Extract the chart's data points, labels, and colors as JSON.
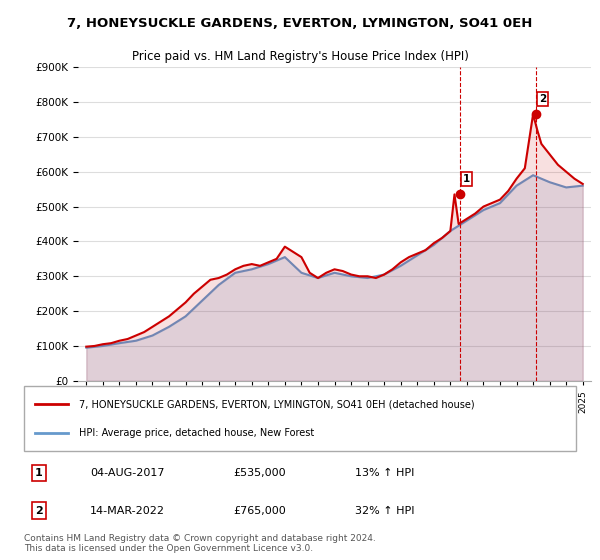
{
  "title": "7, HONEYSUCKLE GARDENS, EVERTON, LYMINGTON, SO41 0EH",
  "subtitle": "Price paid vs. HM Land Registry's House Price Index (HPI)",
  "footer": "Contains HM Land Registry data © Crown copyright and database right 2024.\nThis data is licensed under the Open Government Licence v3.0.",
  "legend_line1": "7, HONEYSUCKLE GARDENS, EVERTON, LYMINGTON, SO41 0EH (detached house)",
  "legend_line2": "HPI: Average price, detached house, New Forest",
  "annotation1_label": "1",
  "annotation1_date": "04-AUG-2017",
  "annotation1_price": "£535,000",
  "annotation1_hpi": "13% ↑ HPI",
  "annotation2_label": "2",
  "annotation2_date": "14-MAR-2022",
  "annotation2_price": "£765,000",
  "annotation2_hpi": "32% ↑ HPI",
  "red_color": "#cc0000",
  "blue_color": "#6699cc",
  "annotation_color": "#cc0000",
  "grid_color": "#dddddd",
  "background_color": "#ffffff",
  "years": [
    1995,
    1996,
    1997,
    1998,
    1999,
    2000,
    2001,
    2002,
    2003,
    2004,
    2005,
    2006,
    2007,
    2008,
    2009,
    2010,
    2011,
    2012,
    2013,
    2014,
    2015,
    2016,
    2017,
    2018,
    2019,
    2020,
    2021,
    2022,
    2023,
    2024,
    2025
  ],
  "hpi_values": [
    95000,
    100000,
    108000,
    115000,
    130000,
    155000,
    185000,
    230000,
    275000,
    310000,
    320000,
    335000,
    355000,
    310000,
    295000,
    310000,
    300000,
    295000,
    305000,
    330000,
    360000,
    390000,
    430000,
    460000,
    490000,
    510000,
    560000,
    590000,
    570000,
    555000,
    560000
  ],
  "price_values_x": [
    1995.0,
    1995.5,
    1996.0,
    1996.5,
    1997.0,
    1997.5,
    1998.0,
    1998.5,
    1999.0,
    1999.5,
    2000.0,
    2000.5,
    2001.0,
    2001.5,
    2002.0,
    2002.5,
    2003.0,
    2003.5,
    2004.0,
    2004.5,
    2005.0,
    2005.5,
    2006.0,
    2006.5,
    2007.0,
    2007.5,
    2008.0,
    2008.5,
    2009.0,
    2009.5,
    2010.0,
    2010.5,
    2011.0,
    2011.5,
    2012.0,
    2012.5,
    2013.0,
    2013.5,
    2014.0,
    2014.5,
    2015.0,
    2015.5,
    2016.0,
    2016.5,
    2017.0,
    2017.25,
    2017.5,
    2018.0,
    2018.5,
    2019.0,
    2019.5,
    2020.0,
    2020.5,
    2021.0,
    2021.5,
    2022.0,
    2022.25,
    2022.5,
    2023.0,
    2023.5,
    2024.0,
    2024.5,
    2025.0
  ],
  "price_values_y": [
    98000,
    100000,
    105000,
    108000,
    115000,
    120000,
    130000,
    140000,
    155000,
    170000,
    185000,
    205000,
    225000,
    250000,
    270000,
    290000,
    295000,
    305000,
    320000,
    330000,
    335000,
    330000,
    340000,
    350000,
    385000,
    370000,
    355000,
    310000,
    295000,
    310000,
    320000,
    315000,
    305000,
    300000,
    300000,
    295000,
    305000,
    320000,
    340000,
    355000,
    365000,
    375000,
    395000,
    410000,
    430000,
    535000,
    450000,
    465000,
    480000,
    500000,
    510000,
    520000,
    545000,
    580000,
    610000,
    765000,
    720000,
    680000,
    650000,
    620000,
    600000,
    580000,
    565000
  ],
  "sale1_x": 2017.6,
  "sale1_y": 535000,
  "sale2_x": 2022.2,
  "sale2_y": 765000,
  "vline1_x": 2017.6,
  "vline2_x": 2022.2,
  "ylim": [
    0,
    900000
  ],
  "xlim": [
    1994.5,
    2025.5
  ]
}
